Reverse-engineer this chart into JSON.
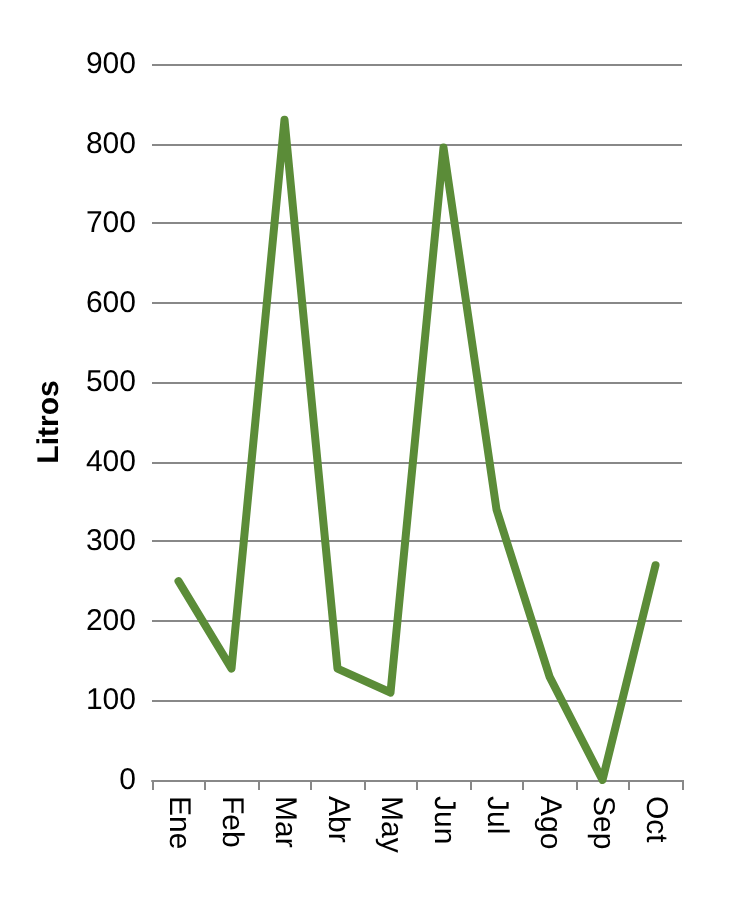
{
  "chart_data": {
    "type": "line",
    "ylabel": "Litros",
    "categories": [
      "Ene",
      "Feb",
      "Mar",
      "Abr",
      "May",
      "Jun",
      "Jul",
      "Ago",
      "Sep",
      "Oct"
    ],
    "series": [
      {
        "color": "#5b8c38",
        "values": [
          250,
          140,
          830,
          140,
          110,
          795,
          340,
          130,
          0,
          270
        ]
      }
    ],
    "ylim": [
      0,
      900
    ],
    "yticks": [
      0,
      100,
      200,
      300,
      400,
      500,
      600,
      700,
      800,
      900
    ],
    "grid": "y",
    "marker": "none",
    "line_style": "solid"
  }
}
